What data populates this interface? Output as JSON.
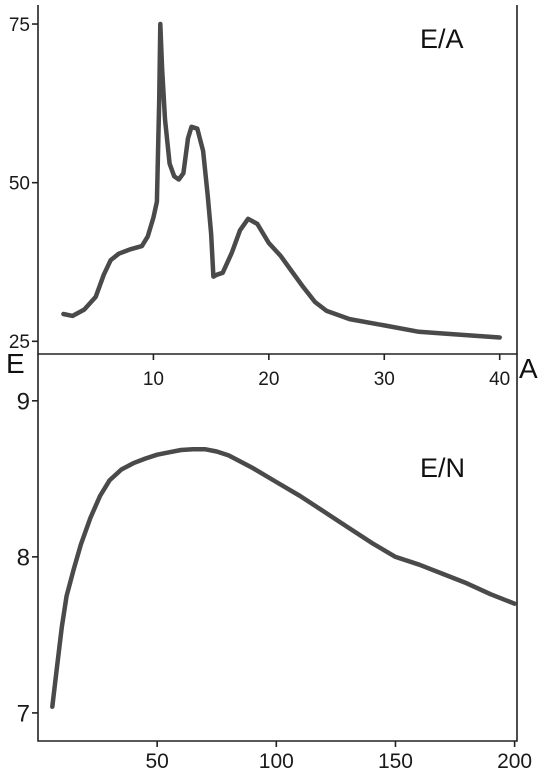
{
  "chart_data": [
    {
      "type": "line",
      "title": "E/A",
      "ylabel": "E",
      "xlabel": "A",
      "xlim": [
        0,
        41.5
      ],
      "ylim": [
        23,
        78
      ],
      "xticks": [
        10,
        20,
        30,
        40
      ],
      "yticks": [
        25,
        50,
        75
      ],
      "grid": false,
      "series": [
        {
          "x": [
            2.2,
            3,
            4,
            5,
            5.7,
            6.3,
            7,
            8,
            9,
            9.5,
            10,
            10.3,
            10.5,
            10.6,
            10.75,
            11,
            11.4,
            11.8,
            12.2,
            12.6,
            13,
            13.3,
            13.8,
            14.3,
            14.7,
            15,
            15.2,
            15.5,
            16,
            16.8,
            17.5,
            18.2,
            19,
            20,
            21,
            22,
            23,
            24,
            25,
            27,
            30,
            33,
            36,
            40
          ],
          "y": [
            29.3,
            29,
            30,
            32,
            35.5,
            37.8,
            38.8,
            39.5,
            40,
            41.5,
            44.5,
            47,
            63,
            75,
            68,
            60,
            53,
            51,
            50.5,
            51.5,
            57,
            58.8,
            58.5,
            55,
            48,
            42,
            35.2,
            35.5,
            35.8,
            39,
            42.5,
            44.3,
            43.5,
            40.5,
            38.5,
            36,
            33.5,
            31.2,
            29.8,
            28.5,
            27.5,
            26.5,
            26.1,
            25.6
          ]
        }
      ]
    },
    {
      "type": "line",
      "title": "E/N",
      "ylabel": "",
      "xlabel": "",
      "xlim": [
        0,
        201
      ],
      "ylim": [
        6.82,
        9.3
      ],
      "xticks": [
        50,
        100,
        150,
        200
      ],
      "yticks": [
        7,
        8,
        9
      ],
      "grid": false,
      "series": [
        {
          "x": [
            6,
            8,
            10,
            12,
            15,
            18,
            22,
            26,
            30,
            35,
            40,
            45,
            50,
            55,
            60,
            65,
            70,
            75,
            80,
            90,
            100,
            110,
            120,
            130,
            140,
            150,
            160,
            170,
            180,
            190,
            200
          ],
          "y": [
            7.04,
            7.3,
            7.55,
            7.75,
            7.92,
            8.08,
            8.25,
            8.39,
            8.49,
            8.56,
            8.6,
            8.63,
            8.655,
            8.67,
            8.685,
            8.69,
            8.69,
            8.675,
            8.65,
            8.57,
            8.48,
            8.39,
            8.29,
            8.19,
            8.09,
            8.0,
            7.95,
            7.89,
            7.83,
            7.76,
            7.7
          ]
        }
      ]
    }
  ]
}
